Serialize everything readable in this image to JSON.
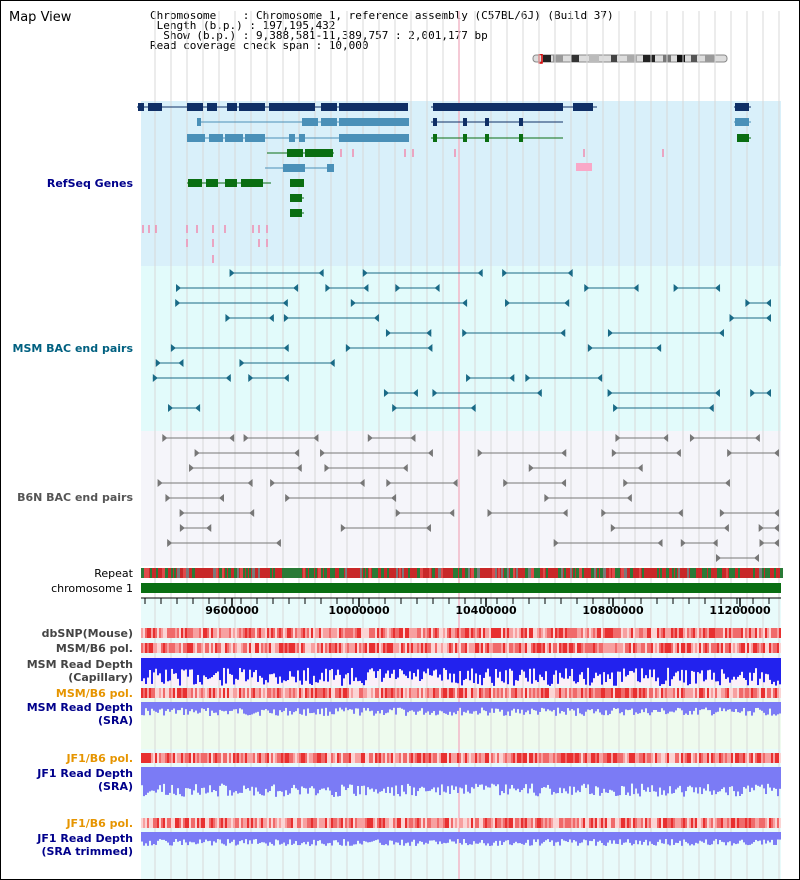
{
  "view_title": "Map View",
  "info": {
    "chromosome": "Chromosome    : Chromosome 1, reference assembly (C57BL/6J) (Build 37)",
    "length": " Length (b.p.) : 197,195,432",
    "show": "  Show (b.p.) : 9,388,581-11,389,757 : 2,001,177 bp",
    "coverage": "Read coverage check span : 10,000"
  },
  "tracks": {
    "refseq": "RefSeq Genes",
    "msm_bac": "MSM BAC end pairs",
    "b6n_bac": "B6N BAC end pairs",
    "repeat": "Repeat",
    "chromosome": "chromosome 1",
    "dbsnp": "dbSNP(Mouse)",
    "msm_pol": "MSM/B6 pol.",
    "msm_depth_cap_1": "MSM Read Depth",
    "msm_depth_cap_2": "(Capillary)",
    "msm_pol_sra": "MSM/B6 pol.",
    "msm_depth_sra_1": "MSM Read Depth",
    "msm_depth_sra_2": "(SRA)",
    "jf1_pol": "JF1/B6 pol.",
    "jf1_depth_1": "JF1 Read Depth",
    "jf1_depth_2": "(SRA)",
    "jf1_pol_trim": "JF1/B6 pol.",
    "jf1_depth_trim_1": "JF1 Read Depth",
    "jf1_depth_trim_2": "(SRA trimmed)"
  },
  "axis_ticks": [
    "9600000",
    "10000000",
    "10400000",
    "10800000",
    "11200000"
  ],
  "colors": {
    "refseq_bg": "#d9f0fa",
    "msm_bg": "#e2fbfb",
    "b6n_bg": "#f5f5fa",
    "gene_navy": "#0f2f66",
    "gene_blue": "#4a90b8",
    "gene_green": "#0a6e12",
    "chrom_green": "#0a6e12",
    "depth_blue": "#2222ee",
    "depth_light": "#7b7bf5"
  }
}
